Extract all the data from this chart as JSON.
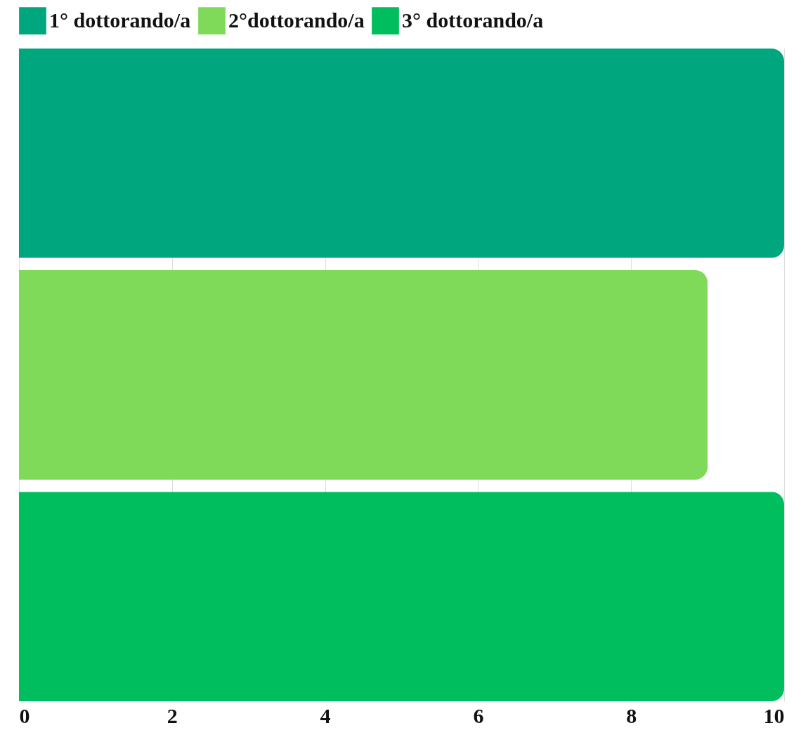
{
  "chart_data": {
    "type": "bar",
    "orientation": "horizontal",
    "categories": [
      null,
      null,
      null
    ],
    "series": [
      {
        "name": "1° dottorando/a",
        "color": "#00a67e",
        "values": [
          10,
          null,
          null
        ]
      },
      {
        "name": "2°dottorando/a",
        "color": "#80da5a",
        "values": [
          null,
          9,
          null
        ]
      },
      {
        "name": "3° dottorando/a",
        "color": "#00bd5e",
        "values": [
          null,
          null,
          10
        ]
      }
    ],
    "xlim": [
      0,
      10
    ],
    "xticks": [
      0,
      2,
      4,
      6,
      8,
      10
    ],
    "grid": "x",
    "legend": "top",
    "tick_labels": "x"
  }
}
